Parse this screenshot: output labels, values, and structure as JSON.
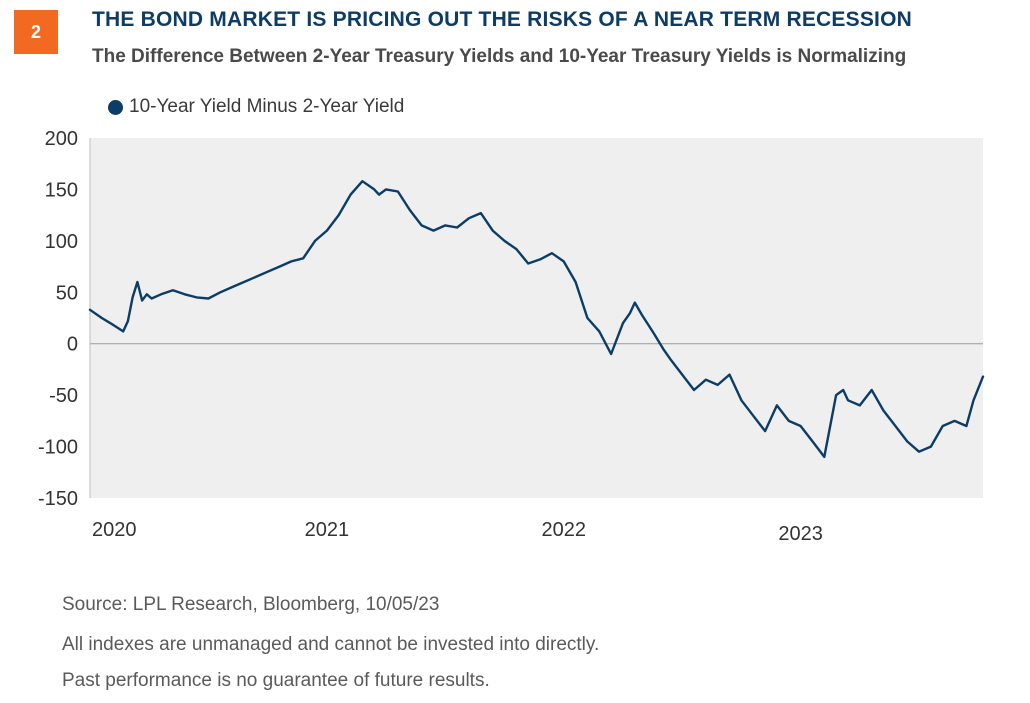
{
  "badge": "2",
  "title": "THE BOND MARKET IS PRICING OUT THE RISKS OF A NEAR TERM RECESSION",
  "subtitle": "The Difference Between 2-Year Treasury Yields and 10-Year Treasury Yields is Normalizing",
  "footer": {
    "source": "Source: LPL Research, Bloomberg,  10/05/23",
    "disclaimer1": "All indexes are unmanaged and cannot be invested into directly.",
    "disclaimer2": "Past performance is no guarantee of future results."
  },
  "colors": {
    "line": "#0c3d66",
    "plot_bg": "#efefef",
    "badge": "#f26a22",
    "zero_line": "#9a9a9a"
  },
  "chart_data": {
    "type": "line",
    "title": "",
    "xlabel": "",
    "ylabel": "",
    "ylim": [
      -150,
      200
    ],
    "yticks": [
      200,
      150,
      100,
      50,
      0,
      -50,
      -100,
      -150
    ],
    "xticks": [
      "2020",
      "2021",
      "2022",
      "2023"
    ],
    "xlim": [
      2020.0,
      2023.77
    ],
    "grid": false,
    "legend_position": "top-left",
    "series": [
      {
        "name": "10-Year Yield Minus 2-Year Yield",
        "x": [
          2020.0,
          2020.05,
          2020.1,
          2020.14,
          2020.16,
          2020.18,
          2020.2,
          2020.22,
          2020.24,
          2020.26,
          2020.3,
          2020.35,
          2020.4,
          2020.45,
          2020.5,
          2020.55,
          2020.6,
          2020.65,
          2020.7,
          2020.75,
          2020.8,
          2020.85,
          2020.9,
          2020.95,
          2021.0,
          2021.05,
          2021.1,
          2021.15,
          2021.2,
          2021.22,
          2021.25,
          2021.3,
          2021.35,
          2021.4,
          2021.45,
          2021.5,
          2021.55,
          2021.6,
          2021.65,
          2021.7,
          2021.75,
          2021.8,
          2021.85,
          2021.9,
          2021.95,
          2022.0,
          2022.05,
          2022.1,
          2022.15,
          2022.2,
          2022.25,
          2022.28,
          2022.3,
          2022.33,
          2022.38,
          2022.42,
          2022.45,
          2022.5,
          2022.55,
          2022.6,
          2022.65,
          2022.7,
          2022.75,
          2022.8,
          2022.85,
          2022.9,
          2022.95,
          2023.0,
          2023.05,
          2023.1,
          2023.15,
          2023.18,
          2023.2,
          2023.25,
          2023.3,
          2023.35,
          2023.4,
          2023.45,
          2023.5,
          2023.55,
          2023.6,
          2023.65,
          2023.7,
          2023.73,
          2023.77
        ],
        "y": [
          33,
          25,
          18,
          12,
          22,
          45,
          60,
          42,
          48,
          44,
          48,
          52,
          48,
          45,
          44,
          50,
          55,
          60,
          65,
          70,
          75,
          80,
          83,
          100,
          110,
          125,
          145,
          158,
          150,
          145,
          150,
          148,
          130,
          115,
          110,
          115,
          113,
          122,
          127,
          110,
          100,
          92,
          78,
          82,
          88,
          80,
          60,
          25,
          12,
          -10,
          20,
          30,
          40,
          28,
          10,
          -5,
          -15,
          -30,
          -45,
          -35,
          -40,
          -30,
          -55,
          -70,
          -85,
          -60,
          -75,
          -80,
          -95,
          -110,
          -50,
          -45,
          -55,
          -60,
          -45,
          -65,
          -80,
          -95,
          -105,
          -100,
          -80,
          -75,
          -80,
          -55,
          -32
        ]
      }
    ]
  }
}
